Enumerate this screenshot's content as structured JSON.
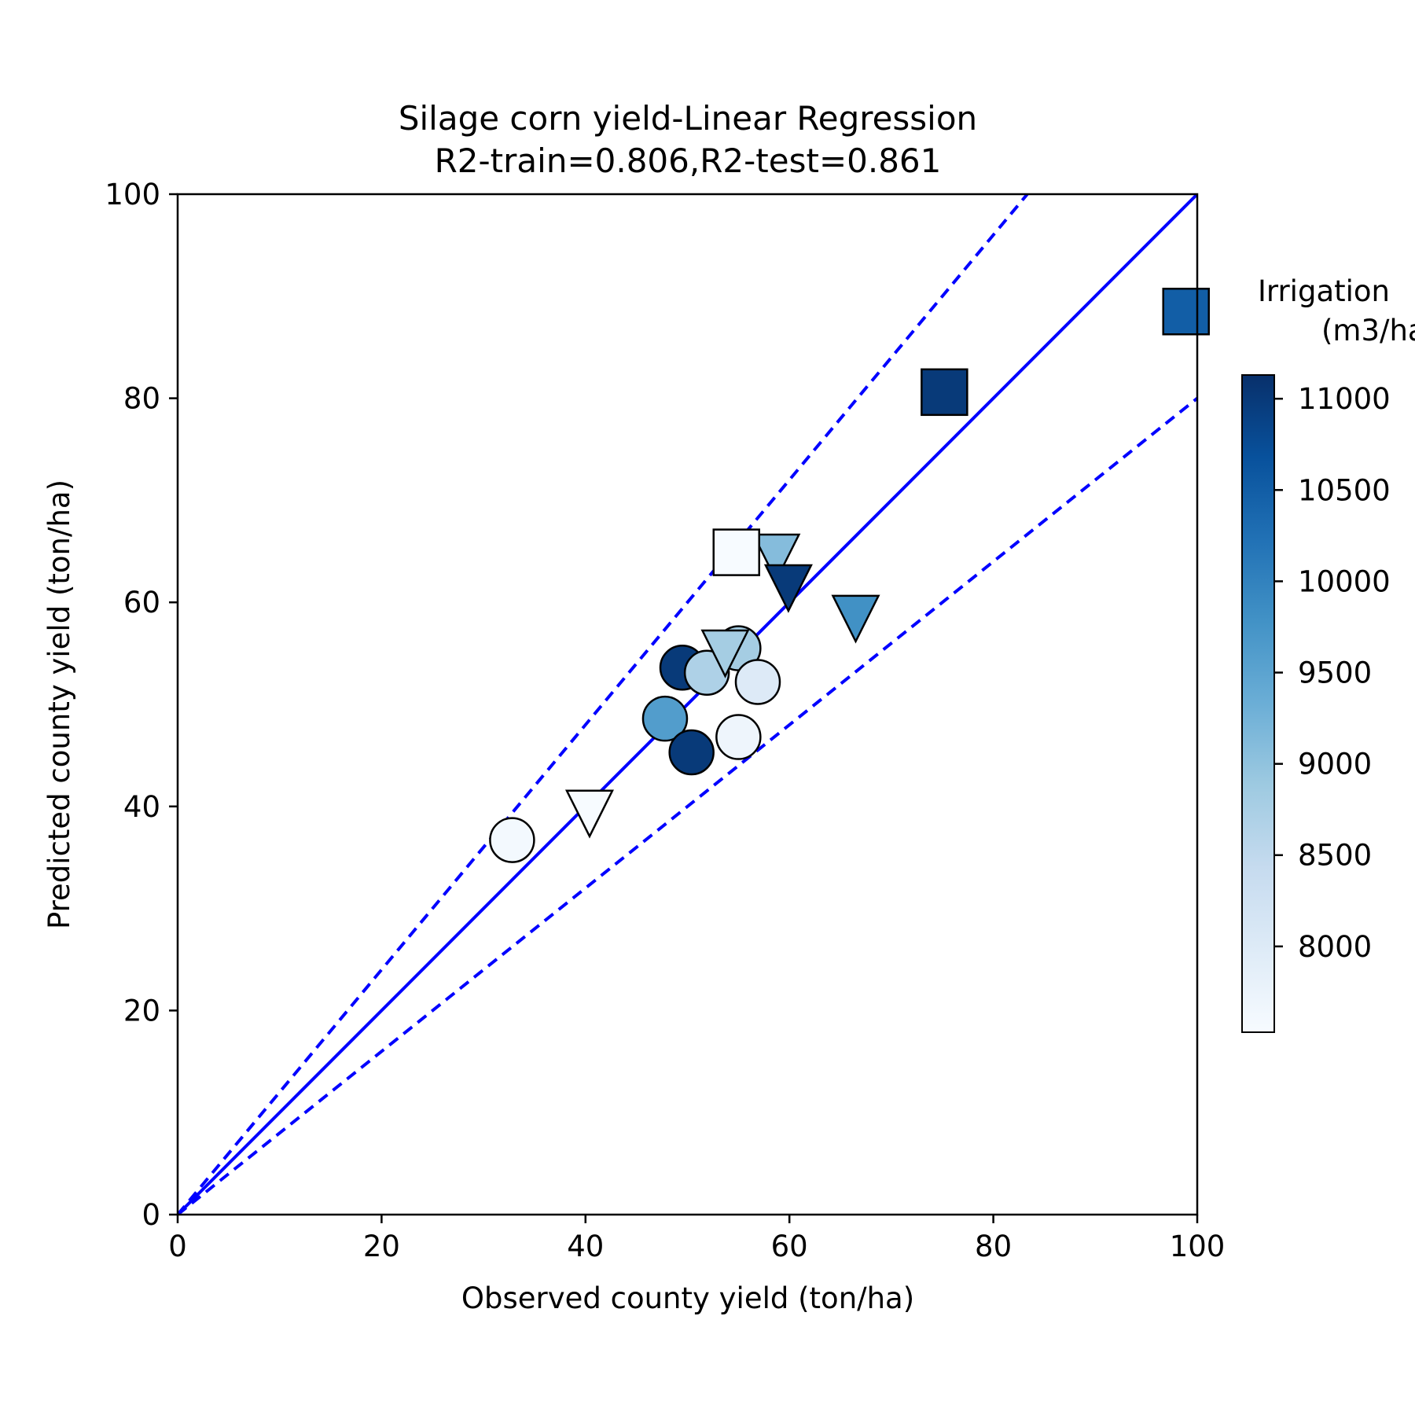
{
  "chart_data": {
    "type": "scatter",
    "title": [
      "Silage corn yield-Linear Regression",
      "R2-train=0.806,R2-test=0.861"
    ],
    "xlabel": "Observed county yield (ton/ha)",
    "ylabel": "Predicted county yield (ton/ha)",
    "xlim": [
      0,
      100
    ],
    "ylim": [
      0,
      100
    ],
    "xticks": [
      0,
      20,
      40,
      60,
      80,
      100
    ],
    "yticks": [
      0,
      20,
      40,
      60,
      80,
      100
    ],
    "grid": false,
    "reference_lines": [
      {
        "kind": "solid",
        "color": "#0000ff",
        "slope": 1.0
      },
      {
        "kind": "dashed",
        "color": "#0000ff",
        "slope": 1.2
      },
      {
        "kind": "dashed",
        "color": "#0000ff",
        "slope": 0.8
      }
    ],
    "colorbar": {
      "title": [
        "Irrigation",
        "(m3/ha)"
      ],
      "range": [
        7530,
        11130
      ],
      "ticks": [
        8000,
        8500,
        9000,
        9500,
        10000,
        10500,
        11000
      ],
      "colormap": "Blues",
      "color_low": "#f7fbff",
      "color_high": "#08306b"
    },
    "series": [
      {
        "marker": "circle",
        "points": [
          {
            "x": 32.8,
            "y": 36.7,
            "irrigation": 7600
          },
          {
            "x": 47.8,
            "y": 48.6,
            "irrigation": 9600
          },
          {
            "x": 49.5,
            "y": 53.6,
            "irrigation": 11000
          },
          {
            "x": 50.4,
            "y": 45.3,
            "irrigation": 11000
          },
          {
            "x": 51.9,
            "y": 53.1,
            "irrigation": 8700
          },
          {
            "x": 55.0,
            "y": 55.5,
            "irrigation": 8800
          },
          {
            "x": 55.0,
            "y": 46.8,
            "irrigation": 7700
          },
          {
            "x": 56.9,
            "y": 52.2,
            "irrigation": 8000
          }
        ]
      },
      {
        "marker": "triangle-down",
        "points": [
          {
            "x": 40.4,
            "y": 40.0,
            "irrigation": 7530
          },
          {
            "x": 53.7,
            "y": 55.7,
            "irrigation": 8800
          },
          {
            "x": 58.7,
            "y": 65.1,
            "irrigation": 9100
          },
          {
            "x": 59.9,
            "y": 62.1,
            "irrigation": 11000
          },
          {
            "x": 66.5,
            "y": 59.1,
            "irrigation": 9800
          }
        ]
      },
      {
        "marker": "square",
        "points": [
          {
            "x": 54.8,
            "y": 64.9,
            "irrigation": 7530
          },
          {
            "x": 75.2,
            "y": 80.6,
            "irrigation": 11000
          },
          {
            "x": 98.9,
            "y": 88.5,
            "irrigation": 10500
          }
        ]
      }
    ]
  }
}
